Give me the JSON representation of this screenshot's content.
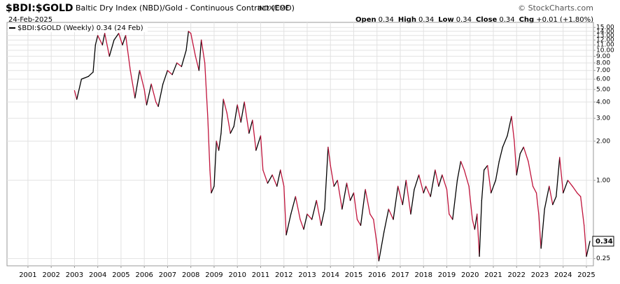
{
  "chart_data": {
    "type": "line",
    "symbol": "$BDI:$GOLD",
    "title": "Baltic Dry Index (NBD)/Gold - Continuous Contract (EOD)",
    "exchange": "INDX/CME",
    "credit": "© StockCharts.com",
    "date": "24-Feb-2025",
    "quote": [
      {
        "label": "Open",
        "value": "0.34"
      },
      {
        "label": "High",
        "value": "0.34"
      },
      {
        "label": "Low",
        "value": "0.34"
      },
      {
        "label": "Close",
        "value": "0.34"
      },
      {
        "label": "Chg",
        "value": "+0.01 (+1.80%)"
      }
    ],
    "legend": "$BDI:$GOLD (Weekly) 0.34 (24 Feb)",
    "log_scale": true,
    "grid": true,
    "up_color": "#000000",
    "down_color": "#c0143c",
    "xlim": [
      2000.1,
      2025.3
    ],
    "xticks": [
      2001,
      2002,
      2003,
      2004,
      2005,
      2006,
      2007,
      2008,
      2009,
      2010,
      2011,
      2012,
      2013,
      2014,
      2015,
      2016,
      2017,
      2018,
      2019,
      2020,
      2021,
      2022,
      2023,
      2024,
      2025
    ],
    "ylim": [
      0.22,
      16.4
    ],
    "yticks": [
      {
        "value": 15,
        "label": "15.00"
      },
      {
        "value": 14,
        "label": "14.00"
      },
      {
        "value": 13,
        "label": "13.00"
      },
      {
        "value": 12,
        "label": "12.00"
      },
      {
        "value": 11,
        "label": "11.00"
      },
      {
        "value": 10,
        "label": "10.00"
      },
      {
        "value": 9,
        "label": "9.00"
      },
      {
        "value": 8,
        "label": "8.00"
      },
      {
        "value": 7,
        "label": "7.00"
      },
      {
        "value": 6,
        "label": "6.00"
      },
      {
        "value": 5,
        "label": "5.00"
      },
      {
        "value": 4,
        "label": "4.00"
      },
      {
        "value": 3,
        "label": "3.00"
      },
      {
        "value": 2,
        "label": "2.00"
      },
      {
        "value": 1,
        "label": "1.00"
      },
      0.25
    ],
    "x": [
      2003.0,
      2003.1,
      2003.3,
      2003.6,
      2003.8,
      2003.9,
      2004.0,
      2004.2,
      2004.3,
      2004.5,
      2004.7,
      2004.9,
      2005.06,
      2005.2,
      2005.4,
      2005.6,
      2005.8,
      2006.0,
      2006.1,
      2006.3,
      2006.5,
      2006.6,
      2006.8,
      2007.0,
      2007.2,
      2007.4,
      2007.6,
      2007.8,
      2007.9,
      2008.0,
      2008.2,
      2008.35,
      2008.45,
      2008.6,
      2008.73,
      2008.82,
      2008.88,
      2009.0,
      2009.1,
      2009.2,
      2009.3,
      2009.4,
      2009.55,
      2009.7,
      2009.85,
      2010.0,
      2010.15,
      2010.3,
      2010.5,
      2010.65,
      2010.8,
      2011.0,
      2011.1,
      2011.3,
      2011.5,
      2011.7,
      2011.85,
      2012.0,
      2012.1,
      2012.3,
      2012.5,
      2012.7,
      2012.85,
      2013.0,
      2013.2,
      2013.4,
      2013.6,
      2013.75,
      2013.9,
      2014.0,
      2014.15,
      2014.3,
      2014.5,
      2014.7,
      2014.85,
      2015.0,
      2015.15,
      2015.3,
      2015.5,
      2015.7,
      2015.85,
      2016.0,
      2016.08,
      2016.3,
      2016.5,
      2016.7,
      2016.9,
      2017.1,
      2017.25,
      2017.45,
      2017.6,
      2017.8,
      2018.0,
      2018.1,
      2018.3,
      2018.5,
      2018.65,
      2018.8,
      2019.0,
      2019.1,
      2019.25,
      2019.45,
      2019.6,
      2019.75,
      2019.95,
      2020.1,
      2020.2,
      2020.3,
      2020.4,
      2020.5,
      2020.6,
      2020.75,
      2020.9,
      2021.1,
      2021.25,
      2021.4,
      2021.6,
      2021.78,
      2021.9,
      2022.0,
      2022.15,
      2022.3,
      2022.5,
      2022.7,
      2022.85,
      2022.95,
      2023.05,
      2023.2,
      2023.4,
      2023.55,
      2023.7,
      2023.85,
      2024.0,
      2024.2,
      2024.4,
      2024.6,
      2024.75,
      2024.9,
      2025.0,
      2025.15
    ],
    "series": [
      {
        "name": "$BDI:$GOLD",
        "values": [
          4.9,
          4.2,
          6.0,
          6.3,
          6.8,
          11,
          13,
          11,
          13.5,
          9,
          12,
          13.5,
          11,
          13,
          7,
          4.3,
          7,
          5,
          3.8,
          5.5,
          4.0,
          3.7,
          5.5,
          7,
          6.5,
          8,
          7.5,
          10,
          14,
          13.5,
          9,
          7,
          12,
          8,
          3,
          1.2,
          0.8,
          0.9,
          2.0,
          1.7,
          2.3,
          4.2,
          3.3,
          2.3,
          2.6,
          3.8,
          2.8,
          4,
          2.3,
          2.9,
          1.7,
          2.2,
          1.2,
          0.95,
          1.1,
          0.9,
          1.2,
          0.9,
          0.38,
          0.55,
          0.75,
          0.5,
          0.42,
          0.55,
          0.5,
          0.7,
          0.45,
          0.6,
          1.8,
          1.3,
          0.9,
          1.0,
          0.6,
          0.95,
          0.7,
          0.8,
          0.5,
          0.45,
          0.85,
          0.55,
          0.5,
          0.32,
          0.24,
          0.4,
          0.6,
          0.5,
          0.9,
          0.65,
          1.0,
          0.55,
          0.85,
          1.1,
          0.8,
          0.9,
          0.75,
          1.2,
          0.9,
          1.1,
          0.85,
          0.55,
          0.5,
          1.0,
          1.4,
          1.2,
          0.9,
          0.5,
          0.42,
          0.55,
          0.26,
          0.7,
          1.2,
          1.3,
          0.8,
          1.0,
          1.4,
          1.8,
          2.2,
          3.1,
          2.0,
          1.1,
          1.6,
          1.8,
          1.4,
          0.9,
          0.8,
          0.55,
          0.3,
          0.6,
          0.9,
          0.65,
          0.75,
          1.5,
          0.8,
          1.0,
          0.9,
          0.8,
          0.75,
          0.45,
          0.26,
          0.34
        ]
      }
    ]
  }
}
